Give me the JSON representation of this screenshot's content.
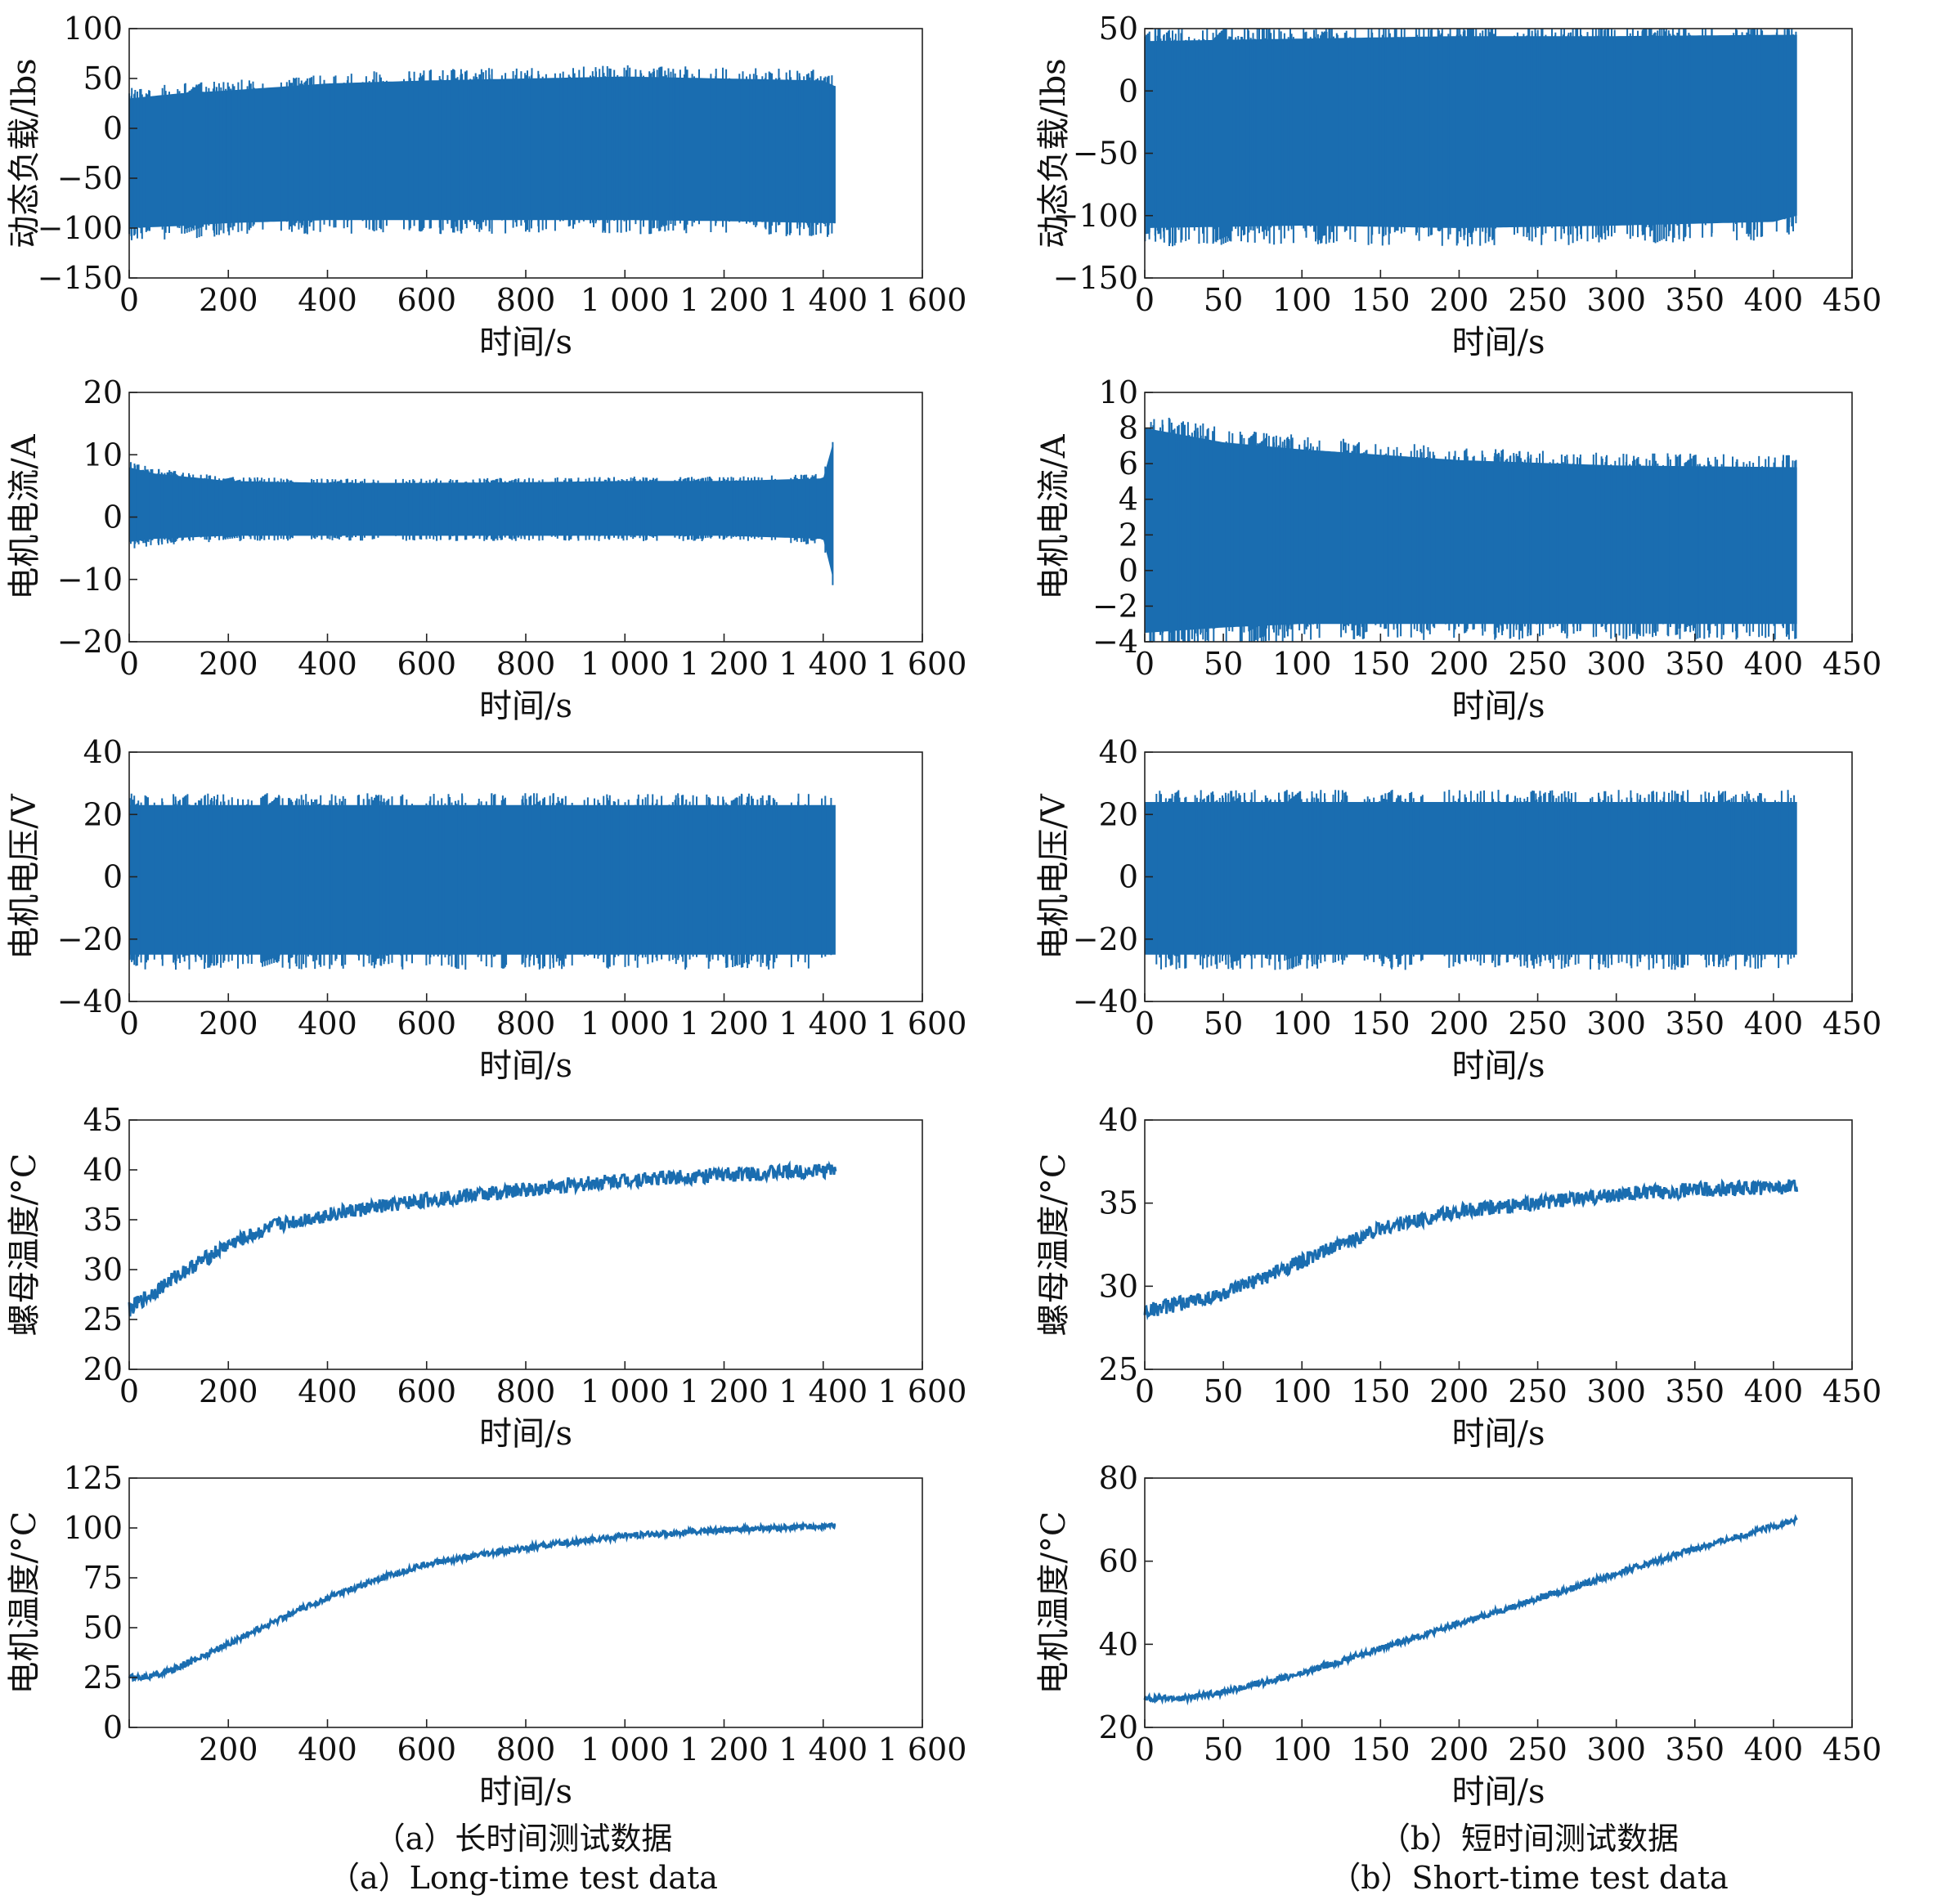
{
  "charts": [
    {
      "column": "a",
      "xlabel": "时间/s",
      "ylabel": "动态负载/lbs",
      "ylim": [
        -150,
        100
      ],
      "yticks": [
        "100",
        "50",
        "0",
        "−50",
        "−100",
        "−150"
      ],
      "xlim": [
        0,
        1600
      ],
      "xticks": [
        "0",
        "200",
        "400",
        "600",
        "800",
        "1 000",
        "1 200",
        "1 400",
        "1 600"
      ]
    },
    {
      "column": "b",
      "xlabel": "时间/s",
      "ylabel": "动态负载/lbs",
      "ylim": [
        -150,
        50
      ],
      "yticks": [
        "50",
        "0",
        "−50",
        "−100",
        "−150"
      ],
      "xlim": [
        0,
        450
      ],
      "xticks": [
        "0",
        "50",
        "100",
        "150",
        "200",
        "250",
        "300",
        "350",
        "400",
        "450"
      ]
    },
    {
      "column": "a",
      "xlabel": "时间/s",
      "ylabel": "电机电流/A",
      "ylim": [
        -20,
        20
      ],
      "yticks": [
        "20",
        "10",
        "0",
        "−10",
        "−20"
      ],
      "xlim": [
        0,
        1600
      ],
      "xticks": [
        "0",
        "200",
        "400",
        "600",
        "800",
        "1 000",
        "1 200",
        "1 400",
        "1 600"
      ]
    },
    {
      "column": "b",
      "xlabel": "时间/s",
      "ylabel": "电机电流/A",
      "ylim": [
        -4,
        10
      ],
      "yticks": [
        "10",
        "8",
        "6",
        "4",
        "2",
        "0",
        "−2",
        "−4"
      ],
      "xlim": [
        0,
        450
      ],
      "xticks": [
        "0",
        "50",
        "100",
        "150",
        "200",
        "250",
        "300",
        "350",
        "400",
        "450"
      ]
    },
    {
      "column": "a",
      "xlabel": "时间/s",
      "ylabel": "电机电压/V",
      "ylim": [
        -40,
        40
      ],
      "yticks": [
        "40",
        "20",
        "0",
        "−20",
        "−40"
      ],
      "xlim": [
        0,
        1600
      ],
      "xticks": [
        "0",
        "200",
        "400",
        "600",
        "800",
        "1 000",
        "1 200",
        "1 400",
        "1 600"
      ]
    },
    {
      "column": "b",
      "xlabel": "时间/s",
      "ylabel": "电机电压/V",
      "ylim": [
        -40,
        40
      ],
      "yticks": [
        "40",
        "20",
        "0",
        "−20",
        "−40"
      ],
      "xlim": [
        0,
        450
      ],
      "xticks": [
        "0",
        "50",
        "100",
        "150",
        "200",
        "250",
        "300",
        "350",
        "400",
        "450"
      ]
    },
    {
      "column": "a",
      "xlabel": "时间/s",
      "ylabel": "螺母温度/°C",
      "ylim": [
        20,
        45
      ],
      "yticks": [
        "45",
        "40",
        "35",
        "30",
        "25",
        "20"
      ],
      "xlim": [
        0,
        1600
      ],
      "xticks": [
        "0",
        "200",
        "400",
        "600",
        "800",
        "1 000",
        "1 200",
        "1 400",
        "1 600"
      ]
    },
    {
      "column": "b",
      "xlabel": "时间/s",
      "ylabel": "螺母温度/°C",
      "ylim": [
        25,
        40
      ],
      "yticks": [
        "40",
        "35",
        "30",
        "25"
      ],
      "xlim": [
        0,
        450
      ],
      "xticks": [
        "0",
        "50",
        "100",
        "150",
        "200",
        "250",
        "300",
        "350",
        "400",
        "450"
      ]
    },
    {
      "column": "a",
      "xlabel": "时间/s",
      "ylabel": "电机温度/°C",
      "ylim": [
        0,
        125
      ],
      "yticks": [
        "125",
        "100",
        "75",
        "50",
        "25",
        "0"
      ],
      "xlim": [
        0,
        1600
      ],
      "xticks": [
        "200",
        "400",
        "600",
        "800",
        "1 000",
        "1 200",
        "1 400",
        "1 600"
      ]
    },
    {
      "column": "b",
      "xlabel": "时间/s",
      "ylabel": "电机温度/°C",
      "ylim": [
        20,
        80
      ],
      "yticks": [
        "80",
        "60",
        "40",
        "20"
      ],
      "xlim": [
        0,
        450
      ],
      "xticks": [
        "0",
        "50",
        "100",
        "150",
        "200",
        "250",
        "300",
        "350",
        "400",
        "450"
      ]
    }
  ],
  "chart_data": [
    {
      "type": "line",
      "panel": "a-load",
      "series_color": "#1a6db0",
      "x": [
        0,
        100,
        200,
        400,
        600,
        800,
        1000,
        1200,
        1400,
        1425
      ],
      "upper": [
        30,
        35,
        38,
        45,
        48,
        50,
        52,
        50,
        48,
        42
      ],
      "lower": [
        -100,
        -98,
        -95,
        -92,
        -92,
        -92,
        -92,
        -93,
        -95,
        -95
      ],
      "xlim": [
        0,
        1600
      ],
      "ylim": [
        -150,
        100
      ]
    },
    {
      "type": "line",
      "panel": "b-load",
      "series_color": "#1a6db0",
      "x": [
        0,
        100,
        200,
        300,
        400,
        415
      ],
      "upper": [
        40,
        42,
        44,
        44,
        45,
        45
      ],
      "lower": [
        -110,
        -108,
        -110,
        -108,
        -105,
        -100
      ],
      "xlim": [
        0,
        450
      ],
      "ylim": [
        -150,
        50
      ]
    },
    {
      "type": "line",
      "panel": "a-current",
      "series_color": "#1a6db0",
      "x": [
        0,
        50,
        200,
        400,
        600,
        800,
        1000,
        1200,
        1400,
        1420
      ],
      "upper": [
        8,
        7,
        5.8,
        5.5,
        5.5,
        5.6,
        5.8,
        5.8,
        6.2,
        12
      ],
      "lower": [
        -4,
        -3.5,
        -3,
        -3,
        -3,
        -3,
        -3,
        -3,
        -3.5,
        -10
      ],
      "xlim": [
        0,
        1600
      ],
      "ylim": [
        -20,
        20
      ]
    },
    {
      "type": "line",
      "panel": "b-current",
      "series_color": "#1a6db0",
      "x": [
        0,
        50,
        100,
        200,
        300,
        415
      ],
      "upper": [
        8,
        7.2,
        6.8,
        6.2,
        5.9,
        5.8
      ],
      "lower": [
        -3.5,
        -3.2,
        -3.0,
        -3.0,
        -3.0,
        -3.0
      ],
      "xlim": [
        0,
        450
      ],
      "ylim": [
        -4,
        10
      ]
    },
    {
      "type": "line",
      "panel": "a-voltage",
      "series_color": "#1a6db0",
      "x": [
        0,
        1425
      ],
      "upper": [
        23,
        23
      ],
      "lower": [
        -25,
        -25
      ],
      "xlim": [
        0,
        1600
      ],
      "ylim": [
        -40,
        40
      ]
    },
    {
      "type": "line",
      "panel": "b-voltage",
      "series_color": "#1a6db0",
      "x": [
        0,
        415
      ],
      "upper": [
        24,
        24
      ],
      "lower": [
        -25,
        -25
      ],
      "xlim": [
        0,
        450
      ],
      "ylim": [
        -40,
        40
      ]
    },
    {
      "type": "line",
      "panel": "a-nut-temp",
      "series_color": "#1a6db0",
      "x": [
        0,
        100,
        200,
        300,
        400,
        600,
        800,
        1000,
        1200,
        1425
      ],
      "y": [
        26,
        29.5,
        32.5,
        34.5,
        35.5,
        37,
        38,
        39,
        39.5,
        40
      ],
      "xlim": [
        0,
        1600
      ],
      "ylim": [
        20,
        45
      ]
    },
    {
      "type": "line",
      "panel": "b-nut-temp",
      "series_color": "#1a6db0",
      "x": [
        0,
        50,
        100,
        150,
        200,
        250,
        300,
        350,
        415
      ],
      "y": [
        28.5,
        29.5,
        31.5,
        33.5,
        34.5,
        35,
        35.5,
        35.8,
        36
      ],
      "xlim": [
        0,
        450
      ],
      "ylim": [
        25,
        40
      ]
    },
    {
      "type": "line",
      "panel": "a-motor-temp",
      "series_color": "#1a6db0",
      "x": [
        0,
        50,
        100,
        200,
        300,
        400,
        500,
        600,
        800,
        1000,
        1200,
        1425
      ],
      "y": [
        25,
        26,
        30,
        42,
        54,
        65,
        74,
        82,
        90,
        96,
        99,
        101
      ],
      "xlim": [
        0,
        1600
      ],
      "ylim": [
        0,
        125
      ]
    },
    {
      "type": "line",
      "panel": "b-motor-temp",
      "series_color": "#1a6db0",
      "x": [
        0,
        25,
        50,
        100,
        150,
        200,
        250,
        300,
        350,
        415
      ],
      "y": [
        27,
        27,
        28.5,
        33,
        39,
        45,
        51,
        57,
        63,
        70
      ],
      "xlim": [
        0,
        450
      ],
      "ylim": [
        20,
        80
      ]
    }
  ],
  "captions": {
    "a_cn": "（a）长时间测试数据",
    "a_en": "（a）Long-time test data",
    "b_cn": "（b）短时间测试数据",
    "b_en": "（b）Short-time test data"
  }
}
